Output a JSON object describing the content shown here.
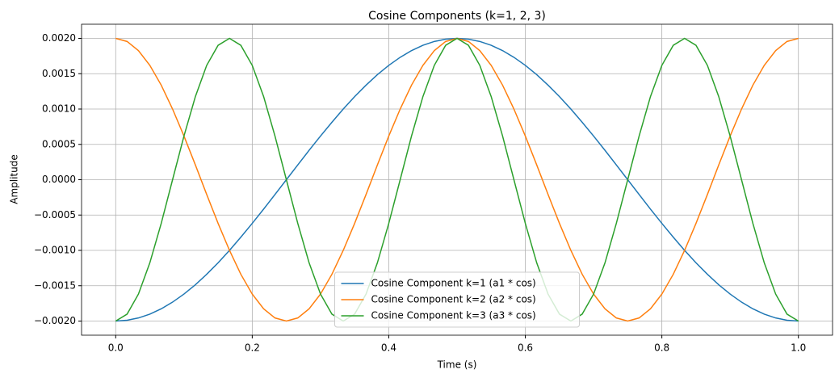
{
  "chart_data": {
    "type": "line",
    "title": "Cosine Components (k=1, 2, 3)",
    "xlabel": "Time (s)",
    "ylabel": "Amplitude",
    "x": [
      0,
      0.0167,
      0.0333,
      0.05,
      0.0667,
      0.0833,
      0.1,
      0.1167,
      0.1333,
      0.15,
      0.1667,
      0.1833,
      0.2,
      0.2167,
      0.2333,
      0.25,
      0.2667,
      0.2833,
      0.3,
      0.3167,
      0.3333,
      0.35,
      0.3667,
      0.3833,
      0.4,
      0.4167,
      0.4333,
      0.45,
      0.4667,
      0.4833,
      0.5,
      0.5167,
      0.5333,
      0.55,
      0.5667,
      0.5833,
      0.6,
      0.6167,
      0.6333,
      0.65,
      0.6667,
      0.6833,
      0.7,
      0.7167,
      0.7333,
      0.75,
      0.7667,
      0.7833,
      0.8,
      0.8167,
      0.8333,
      0.85,
      0.8667,
      0.8833,
      0.9,
      0.9167,
      0.9333,
      0.95,
      0.9667,
      0.9833,
      1
    ],
    "series": [
      {
        "name": "Cosine Component k=1 (a1 * cos)",
        "color": "#1f77b4",
        "values": [
          -0.002,
          -0.001989,
          -0.001956,
          -0.001902,
          -0.001827,
          -0.001732,
          -0.001618,
          -0.001486,
          -0.001338,
          -0.001176,
          -0.001,
          -0.000813,
          -0.000618,
          -0.000416,
          -0.000209,
          0,
          0.000209,
          0.000416,
          0.000618,
          0.000813,
          0.001,
          0.001176,
          0.001338,
          0.001486,
          0.001618,
          0.001732,
          0.001827,
          0.001902,
          0.001956,
          0.001989,
          0.002,
          0.001989,
          0.001956,
          0.001902,
          0.001827,
          0.001732,
          0.001618,
          0.001486,
          0.001338,
          0.001176,
          0.001,
          0.000813,
          0.000618,
          0.000416,
          0.000209,
          0,
          -0.000209,
          -0.000416,
          -0.000618,
          -0.000813,
          -0.001,
          -0.001176,
          -0.001338,
          -0.001486,
          -0.001618,
          -0.001732,
          -0.001827,
          -0.001902,
          -0.001956,
          -0.001989,
          -0.002
        ]
      },
      {
        "name": "Cosine Component k=2 (a2 * cos)",
        "color": "#ff7f0e",
        "values": [
          0.002,
          0.001956,
          0.001827,
          0.001618,
          0.001338,
          0.001,
          0.000618,
          0.000209,
          -0.000209,
          -0.000618,
          -0.001,
          -0.001338,
          -0.001618,
          -0.001827,
          -0.001956,
          -0.002,
          -0.001956,
          -0.001827,
          -0.001618,
          -0.001338,
          -0.001,
          -0.000618,
          -0.000209,
          0.000209,
          0.000618,
          0.001,
          0.001338,
          0.001618,
          0.001827,
          0.001956,
          0.002,
          0.001956,
          0.001827,
          0.001618,
          0.001338,
          0.001,
          0.000618,
          0.000209,
          -0.000209,
          -0.000618,
          -0.001,
          -0.001338,
          -0.001618,
          -0.001827,
          -0.001956,
          -0.002,
          -0.001956,
          -0.001827,
          -0.001618,
          -0.001338,
          -0.001,
          -0.000618,
          -0.000209,
          0.000209,
          0.000618,
          0.001,
          0.001338,
          0.001618,
          0.001827,
          0.001956,
          0.002
        ]
      },
      {
        "name": "Cosine Component k=3 (a3 * cos)",
        "color": "#2ca02c",
        "values": [
          -0.002,
          -0.001902,
          -0.001618,
          -0.001176,
          -0.000618,
          0,
          0.000618,
          0.001176,
          0.001618,
          0.001902,
          0.002,
          0.001902,
          0.001618,
          0.001176,
          0.000618,
          0,
          -0.000618,
          -0.001176,
          -0.001618,
          -0.001902,
          -0.002,
          -0.001902,
          -0.001618,
          -0.001176,
          -0.000618,
          0,
          0.000618,
          0.001176,
          0.001618,
          0.001902,
          0.002,
          0.001902,
          0.001618,
          0.001176,
          0.000618,
          0,
          -0.000618,
          -0.001176,
          -0.001618,
          -0.001902,
          -0.002,
          -0.001902,
          -0.001618,
          -0.001176,
          -0.000618,
          0,
          0.000618,
          0.001176,
          0.001618,
          0.001902,
          0.002,
          0.001902,
          0.001618,
          0.001176,
          0.000618,
          0,
          -0.000618,
          -0.001176,
          -0.001618,
          -0.001902,
          -0.002
        ]
      }
    ],
    "xlim": [
      -0.05,
      1.05
    ],
    "xticks": [
      {
        "value": 0,
        "label": "0.0"
      },
      {
        "value": 0.2,
        "label": "0.2"
      },
      {
        "value": 0.4,
        "label": "0.4"
      },
      {
        "value": 0.6,
        "label": "0.6"
      },
      {
        "value": 0.8,
        "label": "0.8"
      },
      {
        "value": 1,
        "label": "1.0"
      }
    ],
    "ylim": [
      -0.0022,
      0.0022
    ],
    "yticks": [
      {
        "value": -0.002,
        "label": "−0.0020"
      },
      {
        "value": -0.0015,
        "label": "−0.0015"
      },
      {
        "value": -0.001,
        "label": "−0.0010"
      },
      {
        "value": -0.0005,
        "label": "−0.0005"
      },
      {
        "value": 0,
        "label": "0.0000"
      },
      {
        "value": 0.0005,
        "label": "0.0005"
      },
      {
        "value": 0.001,
        "label": "0.0010"
      },
      {
        "value": 0.0015,
        "label": "0.0015"
      },
      {
        "value": 0.002,
        "label": "0.0020"
      }
    ],
    "grid": true,
    "legend": "lower center"
  }
}
